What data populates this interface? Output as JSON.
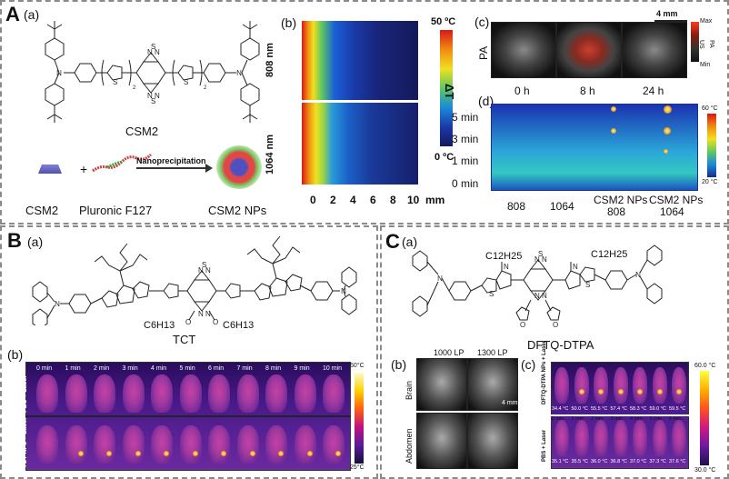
{
  "panelA": {
    "letter": "A",
    "sub_a": "(a)",
    "molecule": "CSM2",
    "reagent1": "CSM2",
    "reagent2": "Pluronic F127",
    "process": "Nanoprecipitation",
    "product": "CSM2 NPs",
    "sub_b": "(b)",
    "row1": "808 nm",
    "row2": "1064 nm",
    "x_ticks": [
      "0",
      "2",
      "4",
      "6",
      "8",
      "10"
    ],
    "x_unit": "mm",
    "cbar_top": "50 ºC",
    "cbar_label": "ΔT",
    "cbar_bottom": "0 ºC",
    "sub_c": "(c)",
    "pa_label": "PA",
    "scale": "4 mm",
    "pa_times": [
      "0 h",
      "8 h",
      "24 h"
    ],
    "pa_cbar_max": "Max",
    "pa_cbar_mid1": "US",
    "pa_cbar_mid2": "PA",
    "pa_cbar_min": "Min",
    "sub_d": "(d)",
    "d_rows": [
      "5 min",
      "3 min",
      "1 min",
      "0 min"
    ],
    "d_cols": [
      "808",
      "1064",
      "CSM2 NPs\n808",
      "CSM2 NPs\n1064"
    ],
    "d_col3_l1": "CSM2 NPs",
    "d_col3_l2": "808",
    "d_col4_l1": "CSM2 NPs",
    "d_col4_l2": "1064",
    "d_cbar_top": "60 °C",
    "d_cbar_bottom": "20 °C"
  },
  "panelB": {
    "letter": "B",
    "sub_a": "(a)",
    "molecule": "TCT",
    "alkoxy_left": "C6H13",
    "alkoxy_right": "C6H13",
    "sub_b": "(b)",
    "times": [
      "0 min",
      "1 min",
      "2 min",
      "3 min",
      "4 min",
      "5 min",
      "6 min",
      "7 min",
      "8 min",
      "9 min",
      "10 min"
    ],
    "row1": "PBS + Laser",
    "row2": "TCT-NPs + Laser",
    "cbar_top": "60°C",
    "cbar_bottom": "25°C"
  },
  "panelC": {
    "letter": "C",
    "sub_a": "(a)",
    "alkyl_left": "C12H25",
    "alkyl_right": "C12H25",
    "molecule": "DFTQ-DTPA",
    "sub_b": "(b)",
    "b_col1": "1000 LP",
    "b_col2": "1300 LP",
    "b_row1": "Brain",
    "b_row2": "Abdomen",
    "b_scale": "4 mm",
    "sub_c": "(c)",
    "c_row1": "DFTQ-DTPA NPs + Laser",
    "c_row2": "PBS + Laser",
    "c_temps1": [
      "34.4 °C",
      "50.0 °C",
      "55.5 °C",
      "57.4 °C",
      "58.3 °C",
      "59.0 °C",
      "59.5 °C"
    ],
    "c_times": [
      "0 min",
      "1 min",
      "2 min",
      "3 min",
      "4 min",
      "5 min",
      "6 min"
    ],
    "c_temps2": [
      "35.1 °C",
      "35.5 °C",
      "36.0 °C",
      "36.8 °C",
      "37.0 °C",
      "37.3 °C",
      "37.6 °C"
    ],
    "c_cbar_top": "60.0 °C",
    "c_cbar_bottom": "30.0 °C"
  }
}
